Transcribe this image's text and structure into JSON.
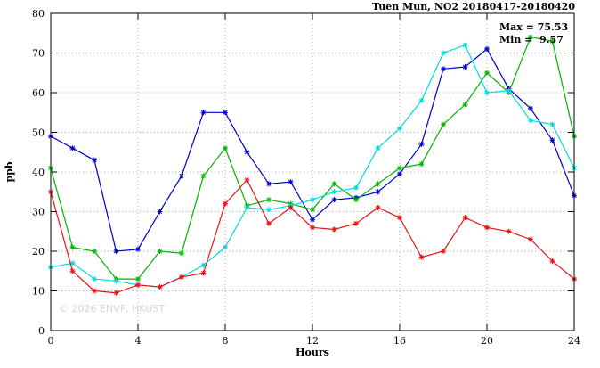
{
  "watermark": "© 2026 ENVF, HKUST",
  "annotations": {
    "max": "Max = 75.53",
    "min": "Min =  9.57"
  },
  "chart_data": {
    "type": "line",
    "title": "Tuen Mun, NO2 20180417-20180420",
    "xlabel": "Hours",
    "ylabel": "ppb",
    "xlim": [
      0,
      24
    ],
    "ylim": [
      0,
      80
    ],
    "xticks": [
      0,
      4,
      8,
      12,
      16,
      20,
      24
    ],
    "yticks": [
      0,
      10,
      20,
      30,
      40,
      50,
      60,
      70,
      80
    ],
    "grid": true,
    "legend": "none",
    "max": 75.53,
    "min": 9.57,
    "x": [
      0,
      1,
      2,
      3,
      4,
      5,
      6,
      7,
      8,
      9,
      10,
      11,
      12,
      13,
      14,
      15,
      16,
      17,
      18,
      19,
      20,
      21,
      22,
      23,
      24
    ],
    "series": [
      {
        "name": "blue",
        "color": "#0000cd",
        "values": [
          49,
          46,
          43,
          20,
          20.5,
          30,
          39,
          55,
          55,
          45,
          37,
          37.5,
          28,
          33,
          33.5,
          35,
          39.5,
          47,
          66,
          66.5,
          71,
          61,
          56,
          48,
          34
        ]
      },
      {
        "name": "green",
        "color": "#00b400",
        "values": [
          41,
          21,
          20,
          13,
          13,
          20,
          19.5,
          39,
          46,
          31.5,
          33,
          32,
          30.5,
          37,
          33,
          37,
          41,
          42,
          52,
          57,
          65,
          60,
          74,
          73,
          49
        ]
      },
      {
        "name": "cyan",
        "color": "#00dcdc",
        "values": [
          16,
          17,
          13,
          12.5,
          11.5,
          11,
          13.5,
          16.5,
          21,
          31,
          30.5,
          31.5,
          33,
          35,
          36,
          46,
          51,
          58,
          70,
          72,
          60,
          60.5,
          53,
          52,
          41
        ]
      },
      {
        "name": "red",
        "color": "#ee1111",
        "values": [
          35,
          15,
          10,
          9.5,
          11.5,
          11,
          13.5,
          14.5,
          32,
          38,
          27,
          31,
          26,
          25.5,
          27,
          31,
          28.5,
          18.5,
          20,
          28.5,
          26,
          25,
          23,
          17.5,
          13
        ]
      }
    ]
  }
}
